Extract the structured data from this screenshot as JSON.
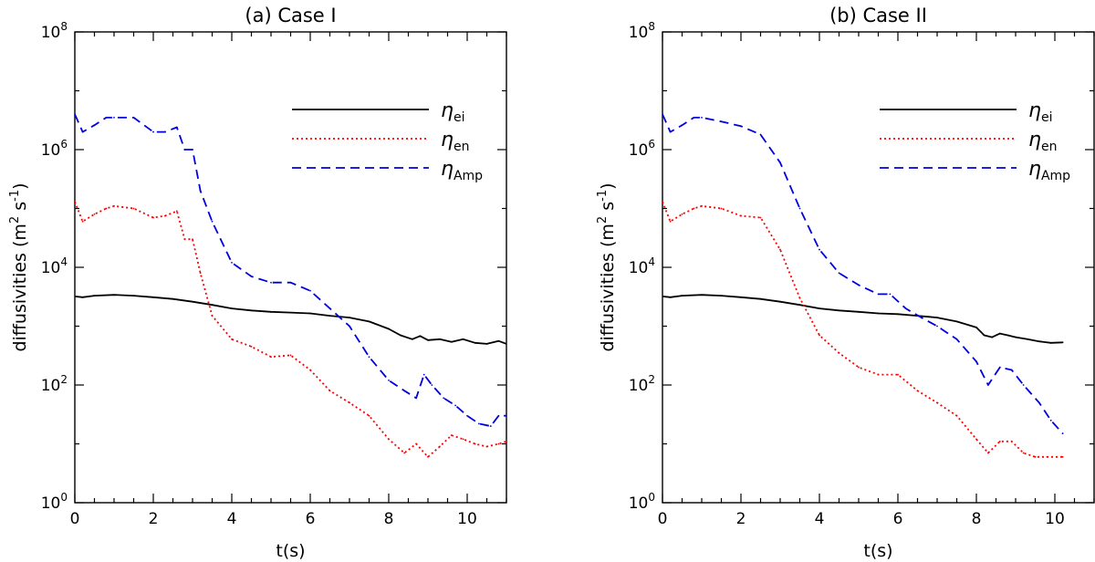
{
  "chart_data": [
    {
      "type": "line",
      "title": "(a) Case I",
      "xlabel": "t(s)",
      "ylabel": "diffusivities (m² s⁻¹)",
      "ylabel_parts": {
        "main": "diffusivities (m",
        "sup1": "2",
        "mid": " s",
        "sup2": "-1",
        "end": ")"
      },
      "xlim": [
        0,
        11
      ],
      "ylim": [
        1,
        100000000
      ],
      "yscale": "log",
      "xticks": [
        "0",
        "2",
        "4",
        "6",
        "8",
        "10"
      ],
      "yticks": [
        {
          "base": "10",
          "exp": "0"
        },
        {
          "base": "10",
          "exp": "2"
        },
        {
          "base": "10",
          "exp": "4"
        },
        {
          "base": "10",
          "exp": "6"
        },
        {
          "base": "10",
          "exp": "8"
        }
      ],
      "legend_position": "top-right",
      "series": [
        {
          "name": "η_ei",
          "symbol": "η",
          "sub": "ei",
          "color": "#000000",
          "dash": "solid",
          "x": [
            0,
            0.2,
            0.5,
            1.0,
            1.5,
            2.0,
            2.5,
            3.0,
            3.5,
            4.0,
            4.5,
            5.0,
            5.5,
            6.0,
            6.5,
            7.0,
            7.5,
            8.0,
            8.3,
            8.6,
            8.8,
            9.0,
            9.3,
            9.6,
            9.9,
            10.2,
            10.5,
            10.8,
            11.0
          ],
          "y": [
            3200,
            3100,
            3300,
            3400,
            3300,
            3100,
            2900,
            2600,
            2300,
            2000,
            1850,
            1750,
            1700,
            1650,
            1500,
            1400,
            1200,
            900,
            700,
            600,
            680,
            580,
            600,
            540,
            600,
            520,
            500,
            560,
            500
          ]
        },
        {
          "name": "η_en",
          "symbol": "η",
          "sub": "en",
          "color": "#ff0000",
          "dash": "dotted",
          "x": [
            0,
            0.2,
            0.5,
            0.8,
            1.0,
            1.5,
            2.0,
            2.3,
            2.6,
            2.8,
            3.0,
            3.2,
            3.5,
            4.0,
            4.5,
            5.0,
            5.5,
            6.0,
            6.5,
            7.0,
            7.5,
            8.0,
            8.4,
            8.7,
            9.0,
            9.3,
            9.6,
            9.9,
            10.2,
            10.5,
            10.8,
            11.0
          ],
          "y": [
            130000,
            60000,
            80000,
            100000,
            110000,
            100000,
            70000,
            75000,
            90000,
            30000,
            30000,
            8000,
            1500,
            600,
            450,
            300,
            320,
            180,
            80,
            50,
            30,
            12,
            7,
            10,
            6,
            9,
            14,
            12,
            10,
            9,
            10,
            11
          ]
        },
        {
          "name": "η_Amp",
          "symbol": "η",
          "sub": "Amp",
          "color": "#0000dd",
          "dash": "dashed",
          "x": [
            0,
            0.2,
            0.5,
            0.8,
            1.0,
            1.5,
            2.0,
            2.3,
            2.6,
            2.8,
            3.0,
            3.2,
            3.5,
            4.0,
            4.5,
            5.0,
            5.5,
            6.0,
            6.5,
            7.0,
            7.5,
            8.0,
            8.4,
            8.7,
            8.9,
            9.1,
            9.4,
            9.7,
            10.0,
            10.3,
            10.6,
            10.8,
            11.0
          ],
          "y": [
            4000000,
            2000000,
            2600000,
            3500000,
            3500000,
            3500000,
            2000000,
            2000000,
            2400000,
            1000000,
            1000000,
            200000,
            60000,
            12000,
            7000,
            5500,
            5500,
            4000,
            2000,
            1000,
            300,
            120,
            80,
            60,
            150,
            100,
            60,
            45,
            30,
            22,
            20,
            30,
            30
          ]
        }
      ]
    },
    {
      "type": "line",
      "title": "(b) Case II",
      "xlabel": "t(s)",
      "ylabel": "diffusivities (m² s⁻¹)",
      "ylabel_parts": {
        "main": "diffusivities (m",
        "sup1": "2",
        "mid": " s",
        "sup2": "-1",
        "end": ")"
      },
      "xlim": [
        0,
        11
      ],
      "ylim": [
        1,
        100000000
      ],
      "yscale": "log",
      "xticks": [
        "0",
        "2",
        "4",
        "6",
        "8",
        "10"
      ],
      "yticks": [
        {
          "base": "10",
          "exp": "0"
        },
        {
          "base": "10",
          "exp": "2"
        },
        {
          "base": "10",
          "exp": "4"
        },
        {
          "base": "10",
          "exp": "6"
        },
        {
          "base": "10",
          "exp": "8"
        }
      ],
      "legend_position": "top-right",
      "series": [
        {
          "name": "η_ei",
          "symbol": "η",
          "sub": "ei",
          "color": "#000000",
          "dash": "solid",
          "x": [
            0,
            0.2,
            0.5,
            1.0,
            1.5,
            2.0,
            2.5,
            3.0,
            3.5,
            4.0,
            4.5,
            5.0,
            5.5,
            6.0,
            6.5,
            7.0,
            7.5,
            8.0,
            8.2,
            8.4,
            8.6,
            8.8,
            9.0,
            9.3,
            9.6,
            9.9,
            10.2
          ],
          "y": [
            3200,
            3100,
            3300,
            3400,
            3300,
            3100,
            2900,
            2600,
            2300,
            2000,
            1850,
            1750,
            1650,
            1600,
            1500,
            1400,
            1200,
            950,
            700,
            650,
            750,
            700,
            650,
            600,
            550,
            520,
            530
          ]
        },
        {
          "name": "η_en",
          "symbol": "η",
          "sub": "en",
          "color": "#ff0000",
          "dash": "dotted",
          "x": [
            0,
            0.2,
            0.5,
            0.8,
            1.0,
            1.5,
            2.0,
            2.5,
            3.0,
            3.5,
            4.0,
            4.5,
            5.0,
            5.5,
            6.0,
            6.5,
            7.0,
            7.5,
            8.0,
            8.3,
            8.6,
            8.9,
            9.2,
            9.5,
            9.8,
            10.2
          ],
          "y": [
            130000,
            60000,
            80000,
            100000,
            110000,
            100000,
            75000,
            70000,
            20000,
            3000,
            700,
            350,
            200,
            150,
            150,
            80,
            50,
            30,
            12,
            7,
            11,
            11,
            7,
            6,
            6,
            6
          ]
        },
        {
          "name": "η_Amp",
          "symbol": "η",
          "sub": "Amp",
          "color": "#0000dd",
          "dash": "dashed",
          "x": [
            0,
            0.2,
            0.5,
            0.8,
            1.0,
            1.5,
            2.0,
            2.5,
            3.0,
            3.5,
            4.0,
            4.5,
            5.0,
            5.5,
            5.8,
            6.2,
            6.6,
            7.0,
            7.5,
            8.0,
            8.3,
            8.6,
            8.9,
            9.2,
            9.6,
            9.9,
            10.2
          ],
          "y": [
            4000000,
            2000000,
            2600000,
            3500000,
            3500000,
            3000000,
            2500000,
            1800000,
            600000,
            100000,
            20000,
            8000,
            5000,
            3500,
            3500,
            2000,
            1400,
            1000,
            600,
            250,
            100,
            200,
            180,
            100,
            50,
            25,
            15
          ]
        }
      ]
    }
  ]
}
